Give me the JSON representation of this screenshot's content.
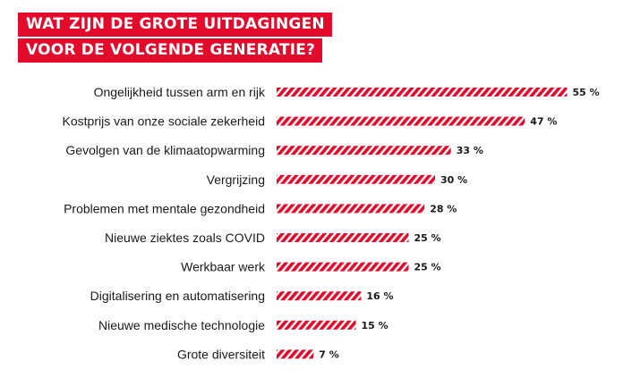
{
  "colors": {
    "accent": "#e30b2c",
    "text": "#1a1a1a",
    "background": "#ffffff"
  },
  "chart_data": {
    "type": "bar",
    "orientation": "horizontal",
    "title": [
      "WAT ZIJN DE GROTE UITDAGINGEN",
      "VOOR DE VOLGENDE GENERATIE?"
    ],
    "value_suffix": " %",
    "bar_style": "red diagonal hatch",
    "categories": [
      "Ongelijkheid tussen arm en rijk",
      "Kostprijs van onze sociale zekerheid",
      "Gevolgen van de klimaatopwarming",
      "Vergrijzing",
      "Problemen met mentale gezondheid",
      "Nieuwe ziektes zoals COVID",
      "Werkbaar werk",
      "Digitalisering en automatisering",
      "Nieuwe medische technologie",
      "Grote diversiteit"
    ],
    "values": [
      55,
      47,
      33,
      30,
      28,
      25,
      25,
      16,
      15,
      7
    ]
  }
}
